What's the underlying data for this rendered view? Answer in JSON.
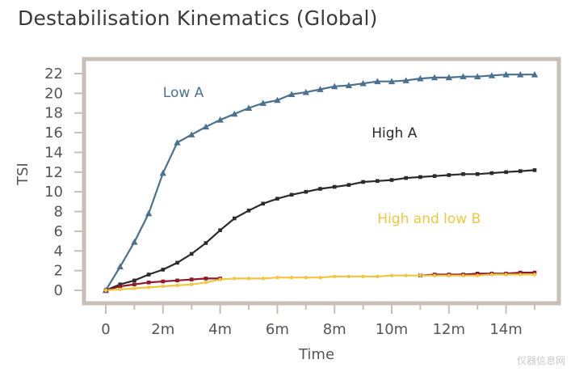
{
  "chart_data": {
    "type": "line",
    "title": "Destabilisation Kinematics (Global)",
    "xlabel": "Time",
    "ylabel": "TSI",
    "xlim": [
      0,
      15
    ],
    "ylim": [
      0,
      22
    ],
    "x_tick_labels": [
      "0",
      "2m",
      "4m",
      "6m",
      "8m",
      "10m",
      "12m",
      "14m"
    ],
    "x_tick_values": [
      0,
      2,
      4,
      6,
      8,
      10,
      12,
      14
    ],
    "y_ticks": [
      0,
      2,
      4,
      6,
      8,
      10,
      12,
      14,
      16,
      18,
      20,
      22
    ],
    "series": [
      {
        "name": "Low A",
        "color": "#4a7290",
        "marker": "triangle",
        "x": [
          0,
          0.5,
          1,
          1.5,
          2,
          2.5,
          3,
          3.5,
          4,
          4.5,
          5,
          5.5,
          6,
          6.5,
          7,
          7.5,
          8,
          8.5,
          9,
          9.5,
          10,
          10.5,
          11,
          11.5,
          12,
          12.5,
          13,
          13.5,
          14,
          14.5,
          15
        ],
        "values": [
          0,
          2.4,
          4.9,
          7.8,
          11.9,
          15.0,
          15.8,
          16.6,
          17.3,
          17.9,
          18.5,
          19.0,
          19.3,
          19.9,
          20.1,
          20.4,
          20.7,
          20.8,
          21.0,
          21.2,
          21.2,
          21.3,
          21.5,
          21.6,
          21.6,
          21.7,
          21.7,
          21.8,
          21.9,
          21.9,
          21.9
        ]
      },
      {
        "name": "High A",
        "color": "#2b2b2b",
        "marker": "square",
        "x": [
          0,
          0.5,
          1,
          1.5,
          2,
          2.5,
          3,
          3.5,
          4,
          4.5,
          5,
          5.5,
          6,
          6.5,
          7,
          7.5,
          8,
          8.5,
          9,
          9.5,
          10,
          10.5,
          11,
          11.5,
          12,
          12.5,
          13,
          13.5,
          14,
          14.5,
          15
        ],
        "values": [
          0,
          0.6,
          1.0,
          1.6,
          2.1,
          2.8,
          3.7,
          4.8,
          6.1,
          7.3,
          8.1,
          8.8,
          9.3,
          9.7,
          10.0,
          10.3,
          10.5,
          10.7,
          11.0,
          11.1,
          11.2,
          11.4,
          11.5,
          11.6,
          11.7,
          11.8,
          11.8,
          11.9,
          12.0,
          12.1,
          12.2
        ]
      },
      {
        "name": "High and low B (dark red)",
        "color": "#8b1a2b",
        "marker": "square",
        "x": [
          0,
          0.5,
          1,
          1.5,
          2,
          2.5,
          3,
          3.5,
          4,
          11,
          11.5,
          12,
          12.5,
          13,
          13.5,
          14,
          14.5,
          15
        ],
        "values": [
          0,
          0.4,
          0.6,
          0.8,
          0.9,
          1.0,
          1.1,
          1.2,
          1.2,
          1.5,
          1.6,
          1.6,
          1.6,
          1.7,
          1.7,
          1.7,
          1.8,
          1.8
        ]
      },
      {
        "name": "High and low B (yellow)",
        "color": "#f2c643",
        "marker": "circle",
        "x": [
          0,
          0.5,
          1,
          1.5,
          2,
          2.5,
          3,
          3.5,
          4,
          4.5,
          5,
          5.5,
          6,
          6.5,
          7,
          7.5,
          8,
          8.5,
          9,
          9.5,
          10,
          10.5,
          11,
          11.5,
          12,
          12.5,
          13,
          13.5,
          14,
          14.5,
          15
        ],
        "values": [
          0,
          0.1,
          0.2,
          0.3,
          0.4,
          0.5,
          0.6,
          0.8,
          1.1,
          1.2,
          1.2,
          1.2,
          1.3,
          1.3,
          1.3,
          1.3,
          1.4,
          1.4,
          1.4,
          1.4,
          1.5,
          1.5,
          1.5,
          1.5,
          1.5,
          1.5,
          1.5,
          1.6,
          1.6,
          1.6,
          1.6
        ]
      }
    ],
    "annotations": [
      {
        "text": "Low A",
        "color": "#4a7290",
        "anchor_x": 2.0,
        "anchor_y": 19.6
      },
      {
        "text": "High A",
        "color": "#2b2b2b",
        "anchor_x": 9.3,
        "anchor_y": 15.5
      },
      {
        "text": "High and low B",
        "color": "#f2c643",
        "anchor_x": 9.5,
        "anchor_y": 6.8
      }
    ],
    "grid": false,
    "frame_color": "#c8bfb6"
  },
  "watermark": "仪器信息网"
}
